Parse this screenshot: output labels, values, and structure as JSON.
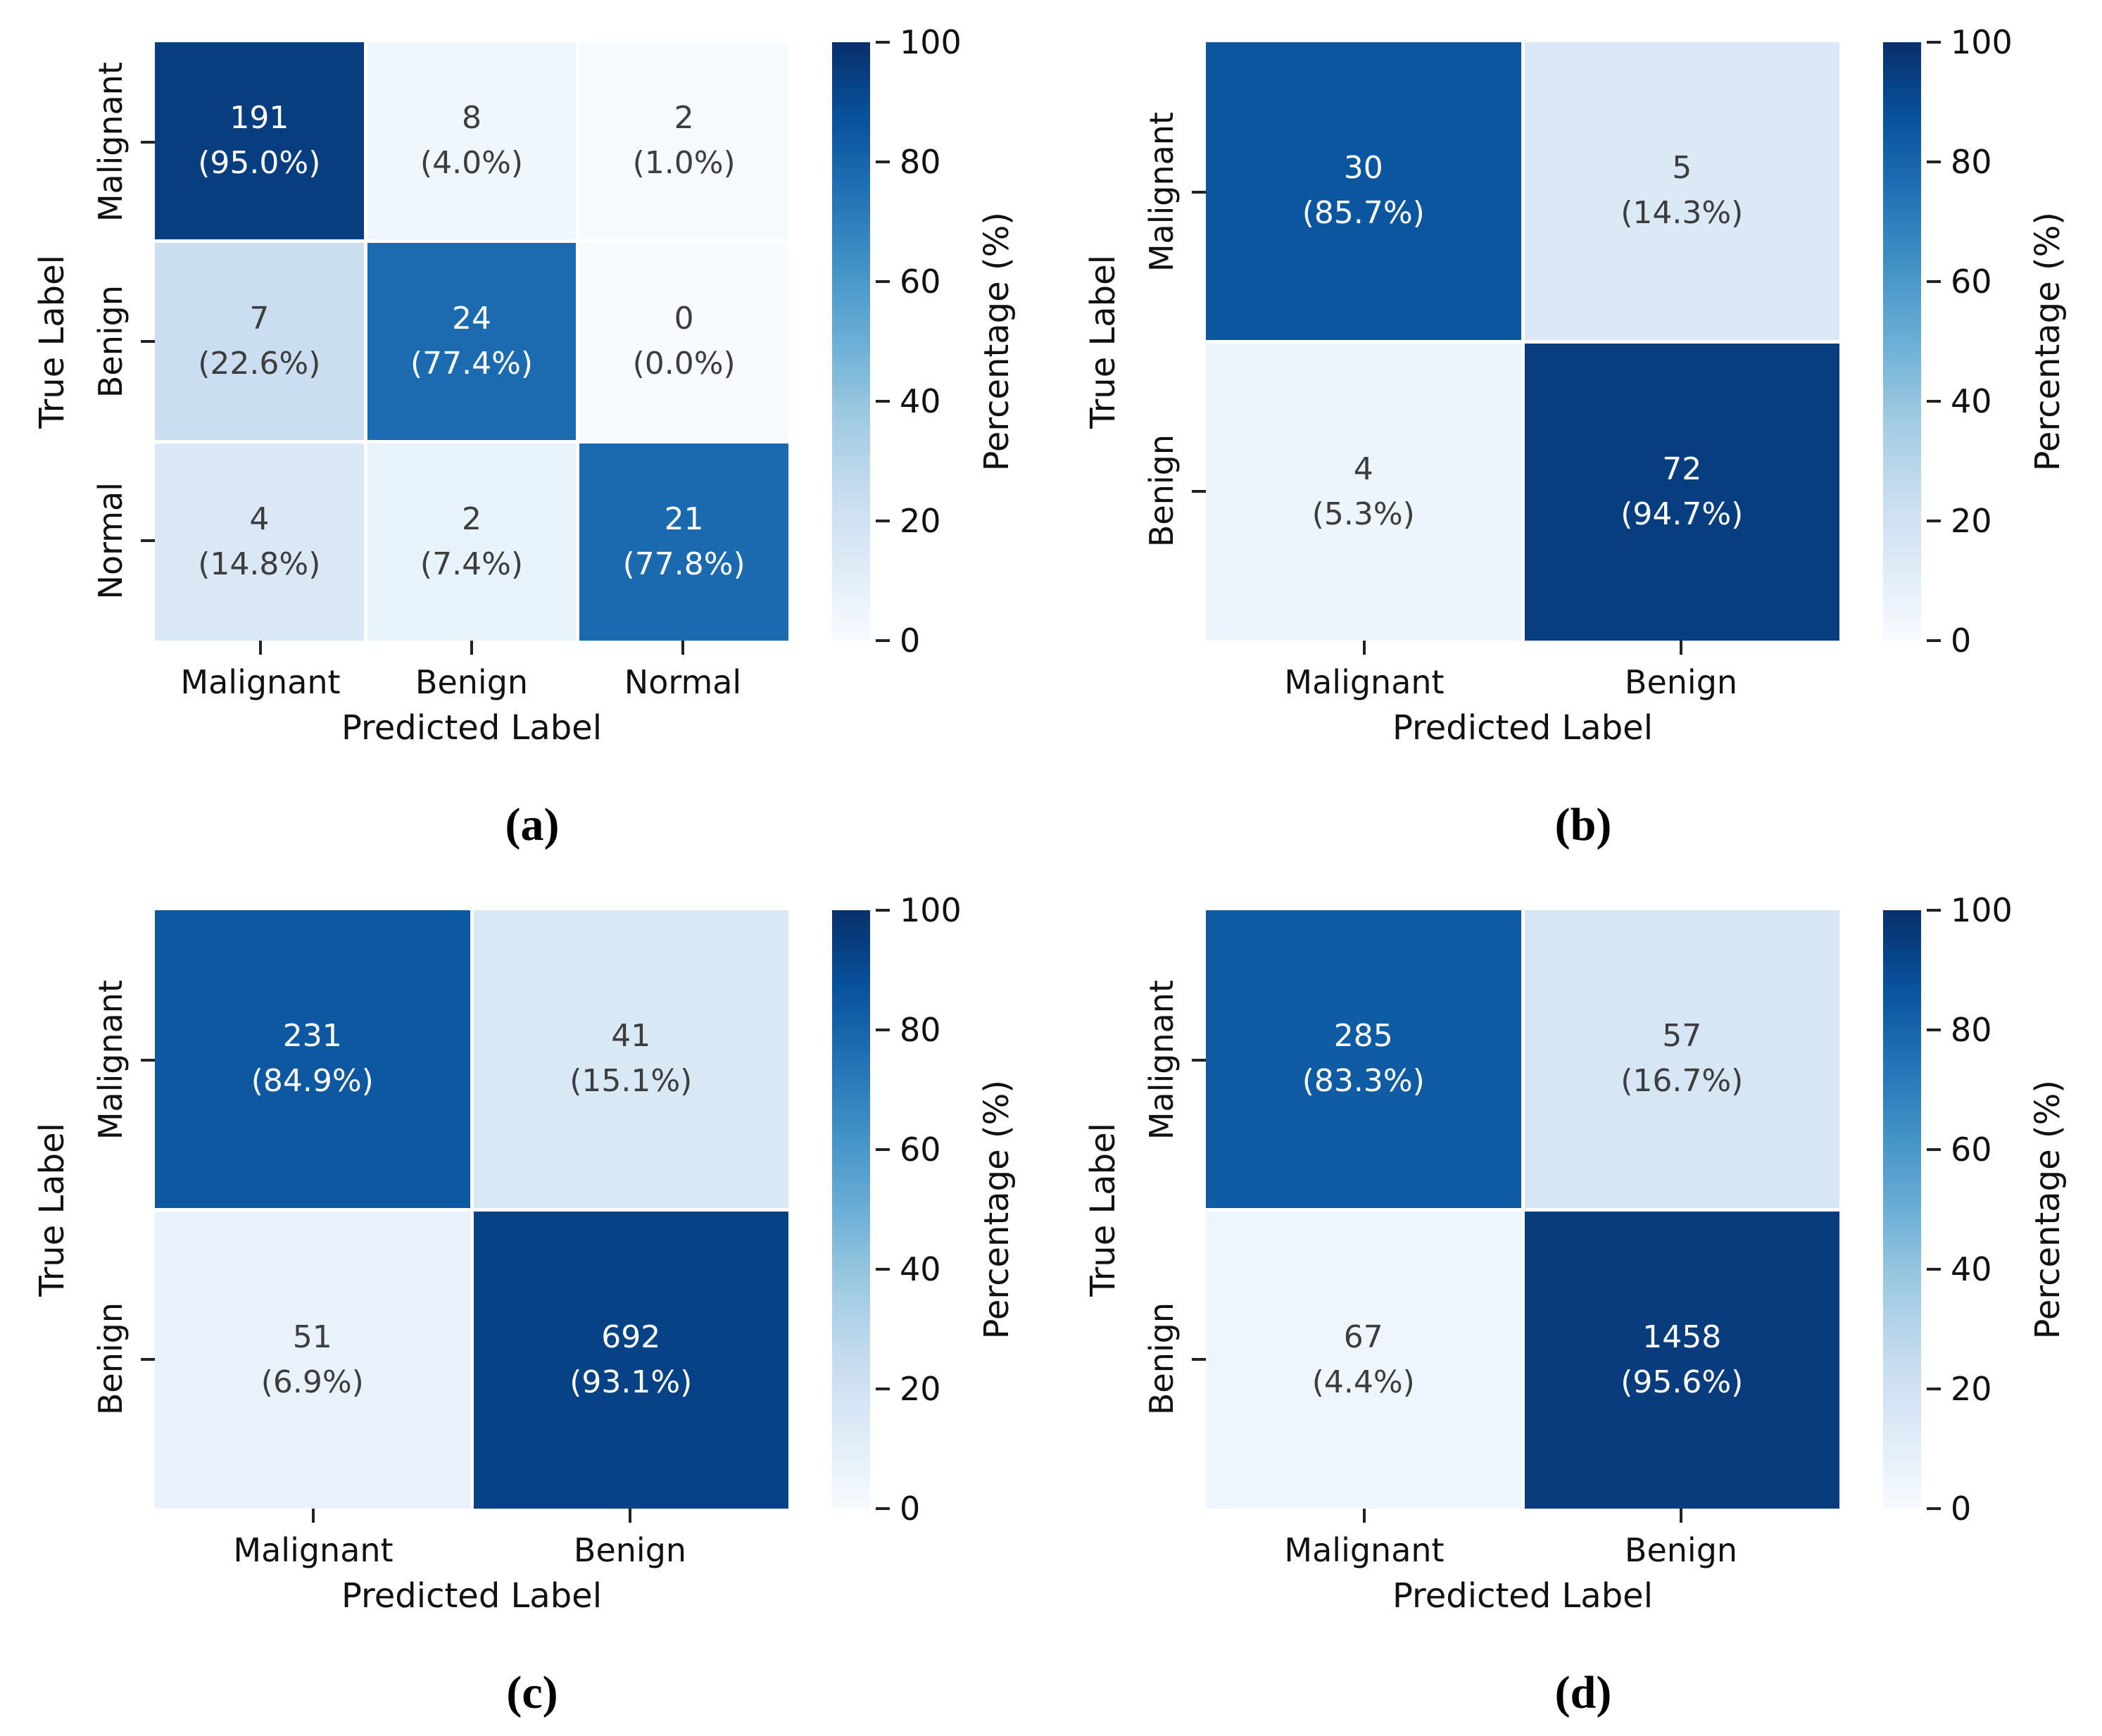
{
  "chart_data": [
    {
      "type": "heatmap",
      "caption": "(a)",
      "xlabel": "Predicted Label",
      "ylabel": "True Label",
      "x_categories": [
        "Malignant",
        "Benign",
        "Normal"
      ],
      "y_categories": [
        "Malignant",
        "Benign",
        "Normal"
      ],
      "counts": [
        [
          191,
          8,
          2
        ],
        [
          7,
          24,
          0
        ],
        [
          4,
          2,
          21
        ]
      ],
      "percentages": [
        [
          95.0,
          4.0,
          1.0
        ],
        [
          22.6,
          77.4,
          0.0
        ],
        [
          14.8,
          7.4,
          77.8
        ]
      ],
      "colormap": "Blues",
      "colorbar": {
        "label": "Percentage (%)",
        "ticks": [
          0,
          20,
          40,
          60,
          80,
          100
        ],
        "range": [
          0,
          100
        ]
      }
    },
    {
      "type": "heatmap",
      "caption": "(b)",
      "xlabel": "Predicted Label",
      "ylabel": "True Label",
      "x_categories": [
        "Malignant",
        "Benign"
      ],
      "y_categories": [
        "Malignant",
        "Benign"
      ],
      "counts": [
        [
          30,
          5
        ],
        [
          4,
          72
        ]
      ],
      "percentages": [
        [
          85.7,
          14.3
        ],
        [
          5.3,
          94.7
        ]
      ],
      "colormap": "Blues",
      "colorbar": {
        "label": "Percentage (%)",
        "ticks": [
          0,
          20,
          40,
          60,
          80,
          100
        ],
        "range": [
          0,
          100
        ]
      }
    },
    {
      "type": "heatmap",
      "caption": "(c)",
      "xlabel": "Predicted Label",
      "ylabel": "True Label",
      "x_categories": [
        "Malignant",
        "Benign"
      ],
      "y_categories": [
        "Malignant",
        "Benign"
      ],
      "counts": [
        [
          231,
          41
        ],
        [
          51,
          692
        ]
      ],
      "percentages": [
        [
          84.9,
          15.1
        ],
        [
          6.9,
          93.1
        ]
      ],
      "colormap": "Blues",
      "colorbar": {
        "label": "Percentage (%)",
        "ticks": [
          0,
          20,
          40,
          60,
          80,
          100
        ],
        "range": [
          0,
          100
        ]
      }
    },
    {
      "type": "heatmap",
      "caption": "(d)",
      "xlabel": "Predicted Label",
      "ylabel": "True Label",
      "x_categories": [
        "Malignant",
        "Benign"
      ],
      "y_categories": [
        "Malignant",
        "Benign"
      ],
      "counts": [
        [
          285,
          57
        ],
        [
          67,
          1458
        ]
      ],
      "percentages": [
        [
          83.3,
          16.7
        ],
        [
          4.4,
          95.6
        ]
      ],
      "colormap": "Blues",
      "colorbar": {
        "label": "Percentage (%)",
        "ticks": [
          0,
          20,
          40,
          60,
          80,
          100
        ],
        "range": [
          0,
          100
        ]
      }
    }
  ]
}
